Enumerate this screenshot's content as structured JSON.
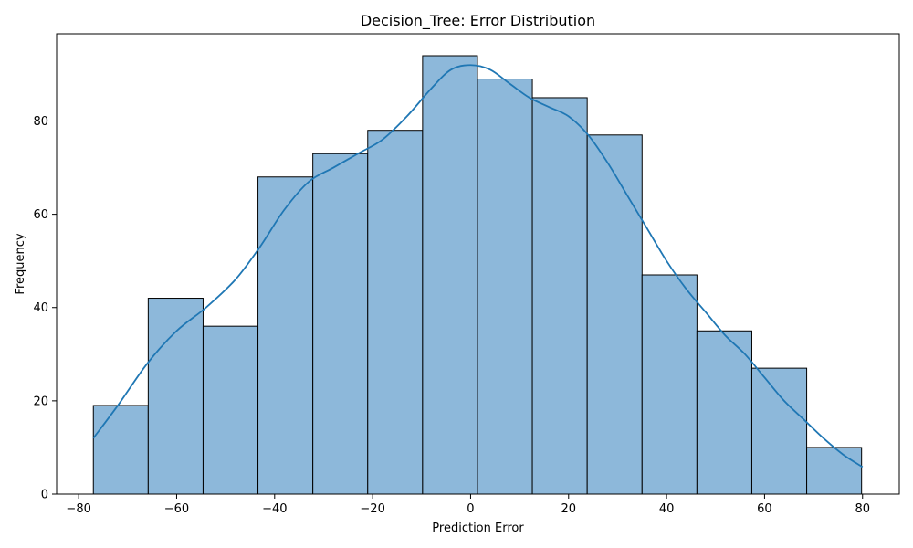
{
  "chart_data": {
    "type": "bar",
    "title": "Decision_Tree: Error Distribution",
    "xlabel": "Prediction Error",
    "ylabel": "Frequency",
    "xlim": [
      -84.5,
      87.5
    ],
    "ylim": [
      0,
      98.7
    ],
    "bin_edges": [
      -77,
      -65.8,
      -54.6,
      -43.4,
      -32.2,
      -21,
      -9.8,
      1.4,
      12.6,
      23.8,
      35,
      46.2,
      57.4,
      68.6,
      79.8
    ],
    "values": [
      19,
      42,
      36,
      68,
      73,
      78,
      94,
      89,
      85,
      77,
      47,
      35,
      27,
      10
    ],
    "kde": {
      "x": [
        -77,
        -72,
        -66,
        -60,
        -54,
        -48,
        -43,
        -38,
        -33,
        -28,
        -23,
        -18,
        -13,
        -8,
        -4,
        0,
        4,
        8,
        12,
        16,
        20,
        24,
        28,
        32,
        36,
        40,
        44,
        48,
        52,
        56,
        60,
        64,
        68,
        72,
        76,
        80
      ],
      "y": [
        12,
        19,
        28,
        35,
        40,
        46,
        53,
        61,
        67,
        70,
        73,
        76,
        81,
        87,
        91,
        92,
        91,
        88,
        85,
        83,
        81,
        77,
        71,
        64,
        57,
        50,
        44,
        39,
        34,
        30,
        25,
        20,
        16,
        12,
        8.5,
        5.8
      ]
    },
    "x_ticks": [
      -80,
      -60,
      -40,
      -20,
      0,
      20,
      40,
      60,
      80
    ],
    "y_ticks": [
      0,
      20,
      40,
      60,
      80
    ],
    "bar_color": "#8db8da",
    "bar_edge_color": "#000000",
    "line_color": "#1f77b4",
    "grid": false,
    "legend": "none"
  }
}
